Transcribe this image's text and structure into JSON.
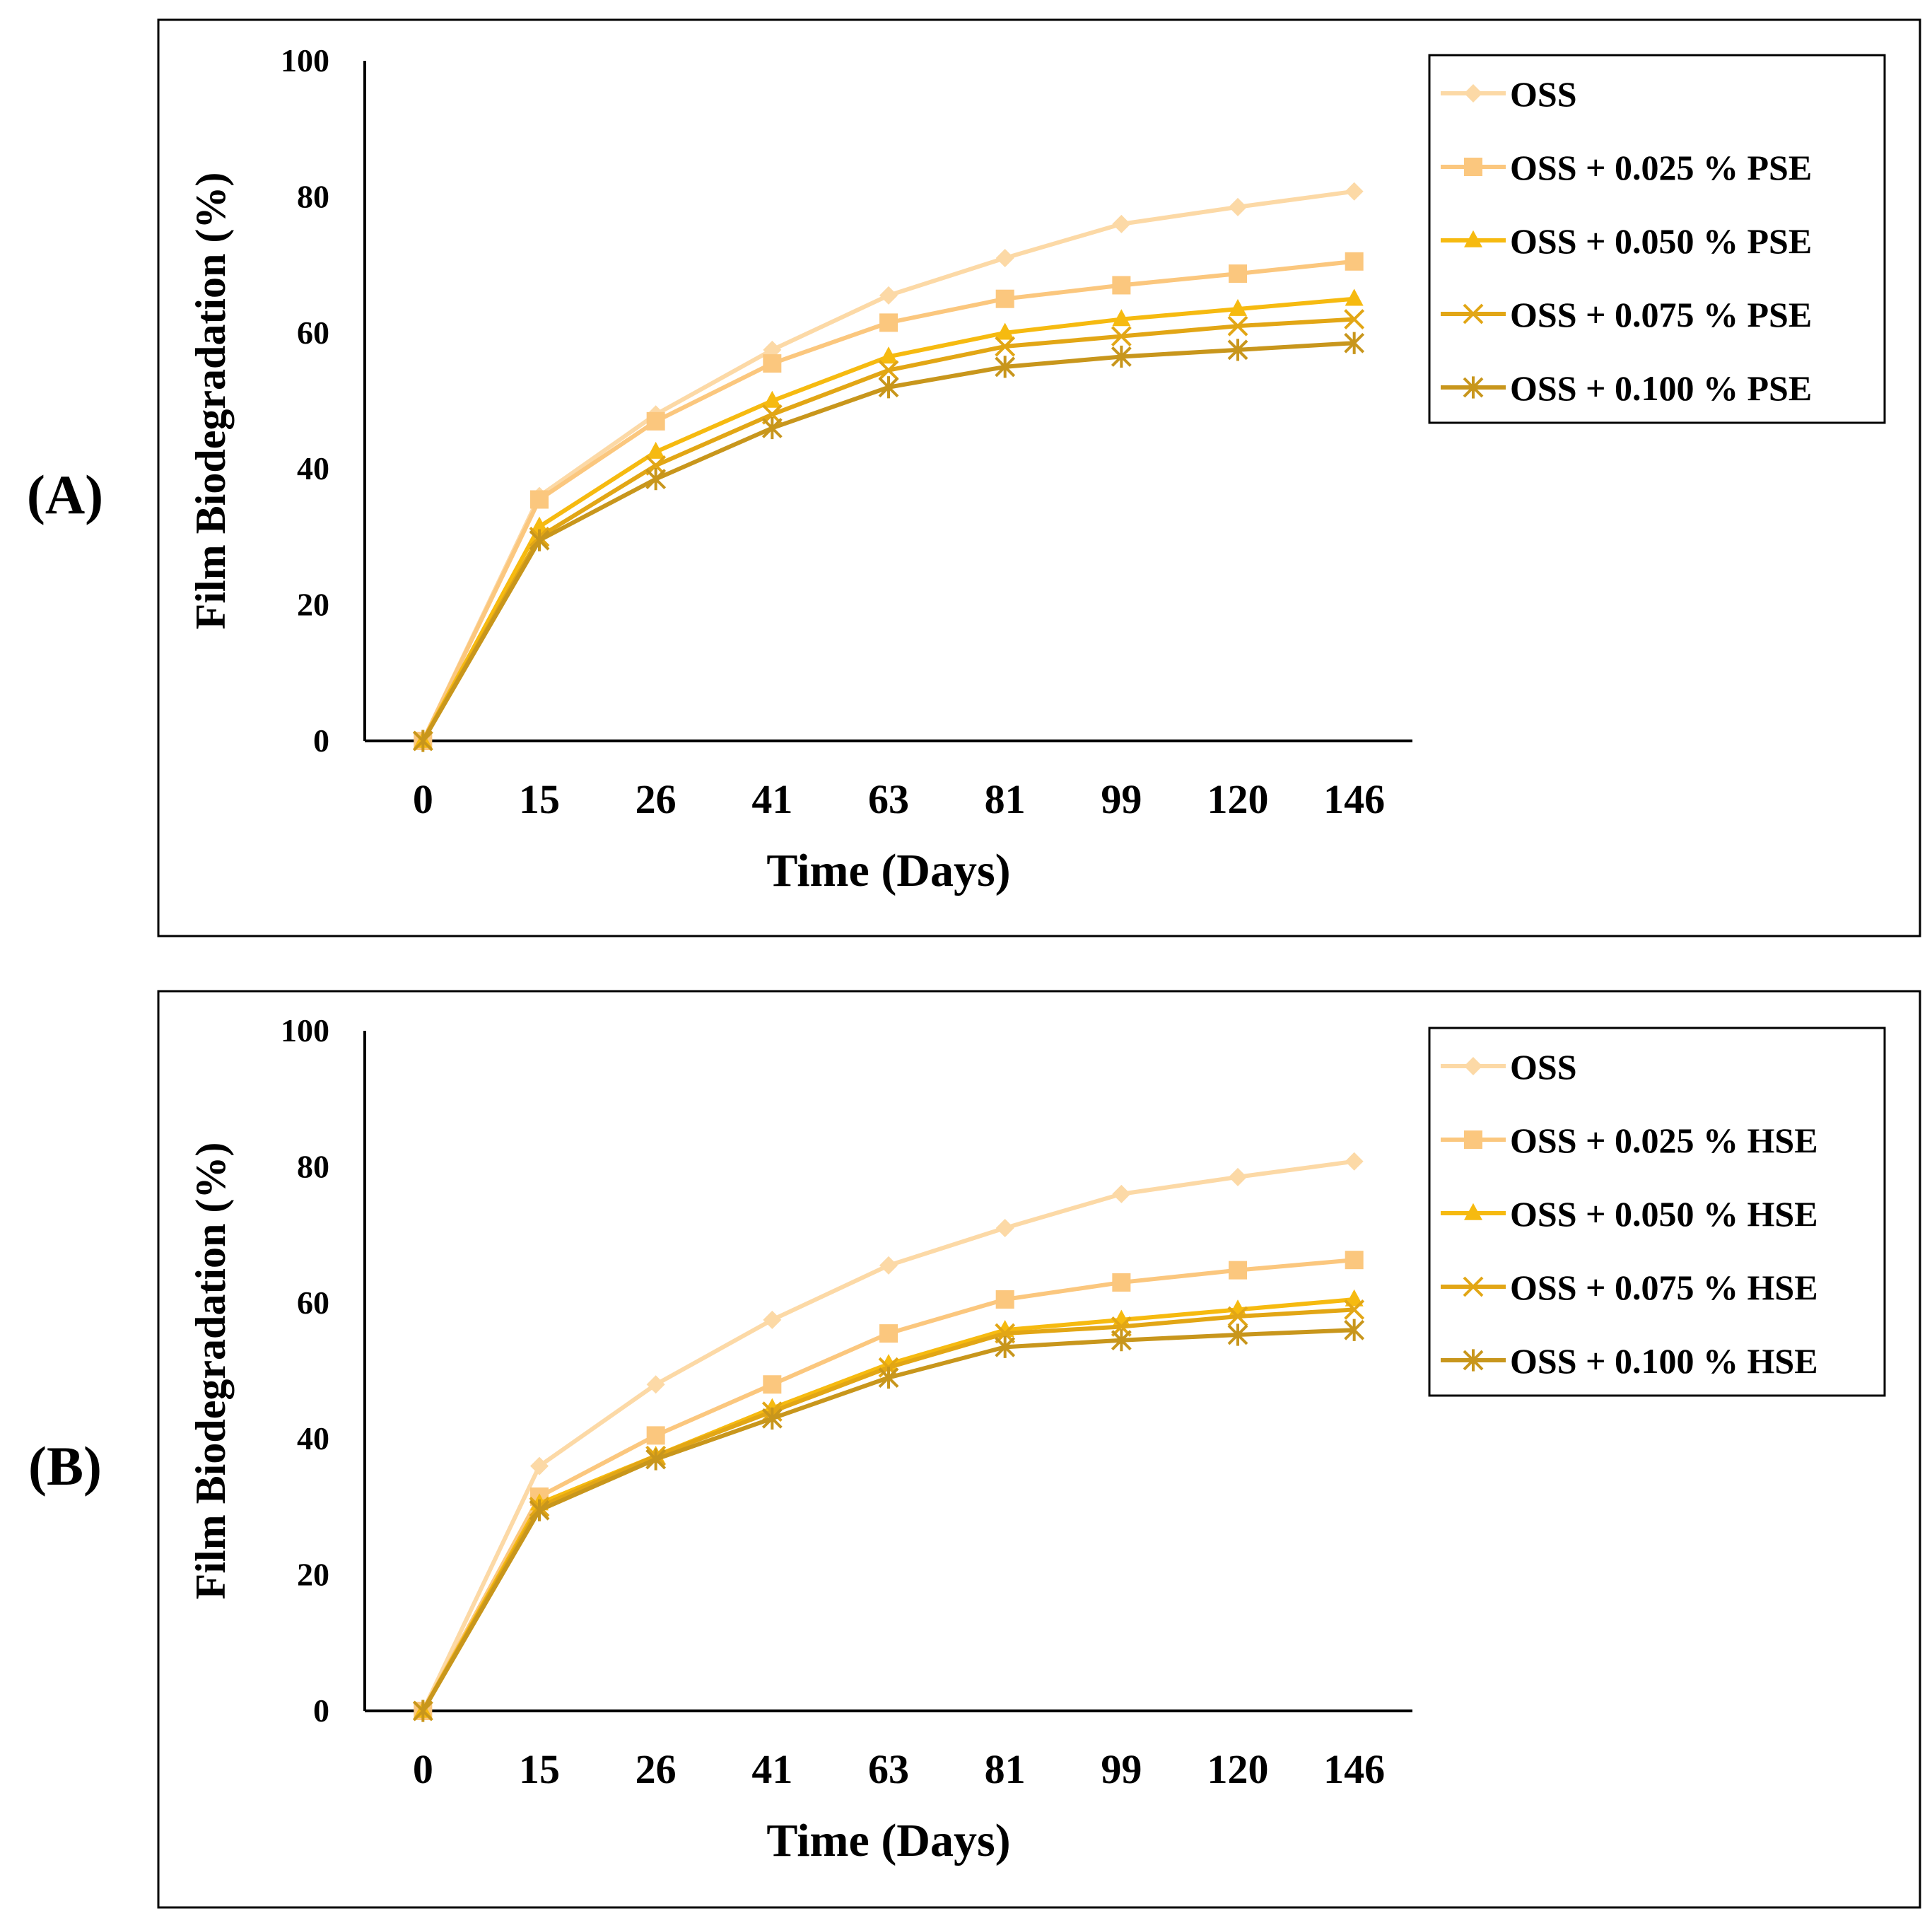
{
  "chart_data": [
    {
      "type": "line",
      "panel_label": "(A)",
      "xlabel": "Time (Days)",
      "ylabel": "Film Biodegradation (%)",
      "ylim": [
        0,
        100
      ],
      "yticks": [
        0,
        20,
        40,
        60,
        80,
        100
      ],
      "categories": [
        "0",
        "15",
        "26",
        "41",
        "63",
        "81",
        "99",
        "120",
        "146"
      ],
      "legend_position": "top-right",
      "series": [
        {
          "name": "OSS",
          "marker": "diamond",
          "color": "#FCD9A6",
          "values": [
            0,
            36,
            48,
            57.5,
            65.5,
            71,
            76,
            78.5,
            80.8
          ]
        },
        {
          "name": "OSS + 0.025 % PSE",
          "marker": "square",
          "color": "#FBC77E",
          "values": [
            0,
            35.5,
            47,
            55.5,
            61.5,
            65,
            67,
            68.7,
            70.5
          ]
        },
        {
          "name": "OSS + 0.050 % PSE",
          "marker": "triangle",
          "color": "#F6BA10",
          "values": [
            0,
            31.5,
            42.5,
            50,
            56.5,
            60,
            62,
            63.5,
            65
          ]
        },
        {
          "name": "OSS + 0.075 % PSE",
          "marker": "x",
          "color": "#E2A615",
          "values": [
            0,
            30,
            40.5,
            48,
            54.5,
            58,
            59.5,
            61,
            62
          ]
        },
        {
          "name": "OSS + 0.100 % PSE",
          "marker": "star",
          "color": "#C8961C",
          "values": [
            0,
            29.5,
            38.5,
            46,
            52,
            55,
            56.5,
            57.5,
            58.5
          ]
        }
      ]
    },
    {
      "type": "line",
      "panel_label": "(B)",
      "xlabel": "Time (Days)",
      "ylabel": "Film Biodegradation (%)",
      "ylim": [
        0,
        100
      ],
      "yticks": [
        0,
        20,
        40,
        60,
        80,
        100
      ],
      "categories": [
        "0",
        "15",
        "26",
        "41",
        "63",
        "81",
        "99",
        "120",
        "146"
      ],
      "legend_position": "top-right",
      "series": [
        {
          "name": "OSS",
          "marker": "diamond",
          "color": "#FCD9A6",
          "values": [
            0,
            36,
            48,
            57.5,
            65.5,
            71,
            76,
            78.5,
            80.8
          ]
        },
        {
          "name": "OSS + 0.025 % HSE",
          "marker": "square",
          "color": "#FBC77E",
          "values": [
            0,
            31.5,
            40.5,
            48,
            55.5,
            60.5,
            63,
            64.8,
            66.3
          ]
        },
        {
          "name": "OSS + 0.050 % HSE",
          "marker": "triangle",
          "color": "#F6BA10",
          "values": [
            0,
            30.5,
            37.5,
            44.5,
            51,
            56,
            57.5,
            59,
            60.5
          ]
        },
        {
          "name": "OSS + 0.075 % HSE",
          "marker": "x",
          "color": "#E2A615",
          "values": [
            0,
            30,
            37.5,
            44,
            50.5,
            55.5,
            56.5,
            58,
            59
          ]
        },
        {
          "name": "OSS + 0.100 % HSE",
          "marker": "star",
          "color": "#C8961C",
          "values": [
            0,
            29.5,
            37,
            43,
            49,
            53.5,
            54.5,
            55.3,
            56
          ]
        }
      ]
    }
  ]
}
